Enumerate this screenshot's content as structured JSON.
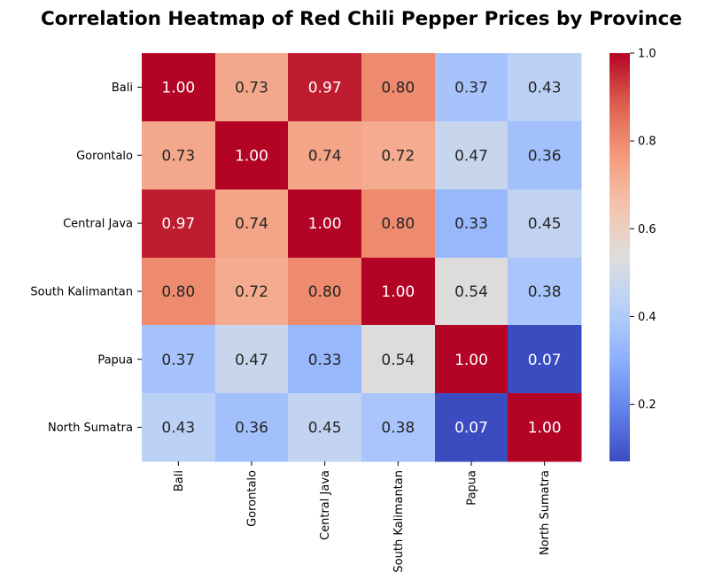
{
  "chart_data": {
    "type": "heatmap",
    "title": "Correlation Heatmap of Red Chili Pepper Prices by Province",
    "rows": [
      "Bali",
      "Gorontalo",
      "Central Java",
      "South Kalimantan",
      "Papua",
      "North Sumatra"
    ],
    "columns": [
      "Bali",
      "Gorontalo",
      "Central Java",
      "South Kalimantan",
      "Papua",
      "North Sumatra"
    ],
    "values": [
      [
        1.0,
        0.73,
        0.97,
        0.8,
        0.37,
        0.43
      ],
      [
        0.73,
        1.0,
        0.74,
        0.72,
        0.47,
        0.36
      ],
      [
        0.97,
        0.74,
        1.0,
        0.8,
        0.33,
        0.45
      ],
      [
        0.8,
        0.72,
        0.8,
        1.0,
        0.54,
        0.38
      ],
      [
        0.37,
        0.47,
        0.33,
        0.54,
        1.0,
        0.07
      ],
      [
        0.43,
        0.36,
        0.45,
        0.38,
        0.07,
        1.0
      ]
    ],
    "colormap": "coolwarm",
    "colorbar": {
      "min": 0.07,
      "max": 1.0,
      "ticks": [
        0.2,
        0.4,
        0.6,
        0.8,
        1.0
      ],
      "tick_labels": [
        "0.2",
        "0.4",
        "0.6",
        "0.8",
        "1.0"
      ]
    },
    "annotation_format": "2 decimals",
    "grid": false
  }
}
